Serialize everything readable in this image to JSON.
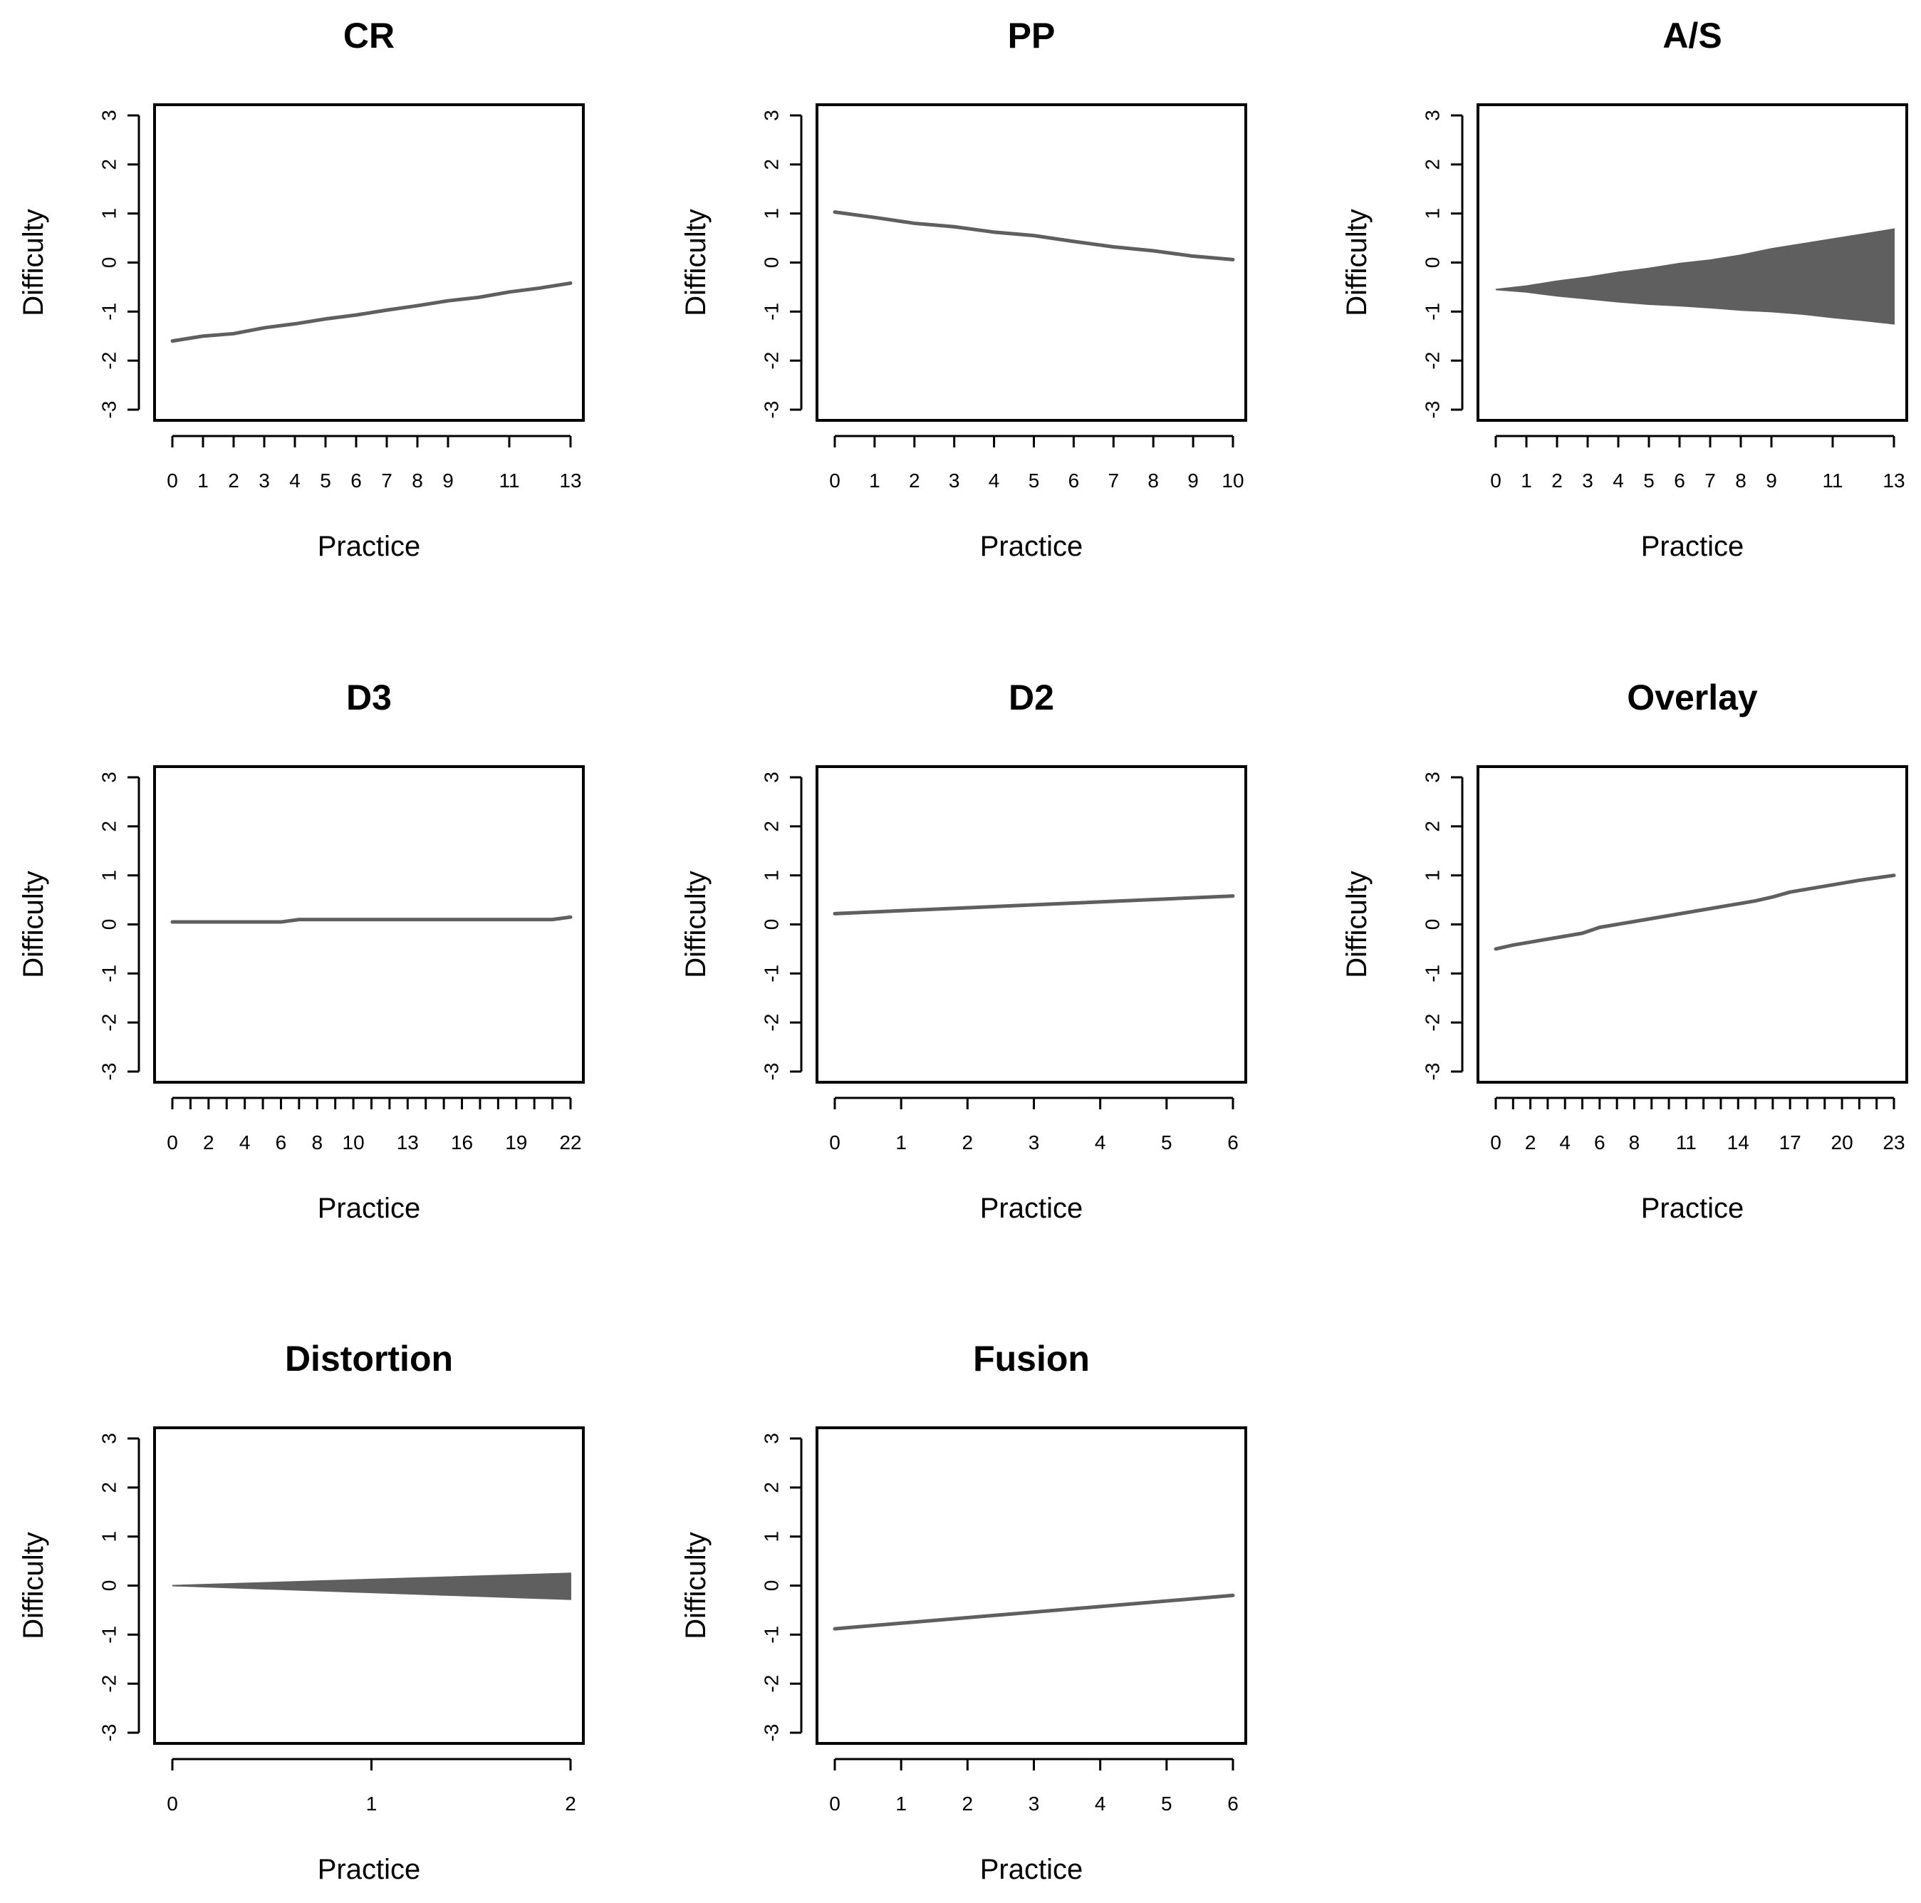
{
  "chart_data": [
    {
      "type": "line",
      "title": "CR",
      "xlabel": "Practice",
      "ylabel": "Difficulty",
      "x_tick_labels": [
        "0",
        "1",
        "2",
        "3",
        "4",
        "5",
        "6",
        "7",
        "8",
        "9",
        "11",
        "13"
      ],
      "x_tick_values": [
        0,
        1,
        2,
        3,
        4,
        5,
        6,
        7,
        8,
        9,
        11,
        13
      ],
      "xlim": [
        0,
        13
      ],
      "ylim": [
        -3,
        3
      ],
      "y_tick_labels": [
        "-3",
        "-2",
        "-1",
        "0",
        "1",
        "2",
        "3"
      ],
      "series": [
        {
          "name": "CR",
          "x": [
            0,
            1,
            2,
            3,
            4,
            5,
            6,
            7,
            8,
            9,
            10,
            11,
            12,
            13
          ],
          "values": [
            -1.6,
            -1.5,
            -1.45,
            -1.33,
            -1.25,
            -1.15,
            -1.07,
            -0.97,
            -0.88,
            -0.78,
            -0.71,
            -0.6,
            -0.52,
            -0.42
          ]
        }
      ]
    },
    {
      "type": "line",
      "title": "PP",
      "xlabel": "Practice",
      "ylabel": "Difficulty",
      "x_tick_labels": [
        "0",
        "1",
        "2",
        "3",
        "4",
        "5",
        "6",
        "7",
        "8",
        "9",
        "10"
      ],
      "x_tick_values": [
        0,
        1,
        2,
        3,
        4,
        5,
        6,
        7,
        8,
        9,
        10
      ],
      "xlim": [
        0,
        10
      ],
      "ylim": [
        -3,
        3
      ],
      "y_tick_labels": [
        "-3",
        "-2",
        "-1",
        "0",
        "1",
        "2",
        "3"
      ],
      "series": [
        {
          "name": "PP",
          "x": [
            0,
            1,
            2,
            3,
            4,
            5,
            6,
            7,
            8,
            9,
            10
          ],
          "values": [
            1.03,
            0.92,
            0.8,
            0.73,
            0.62,
            0.55,
            0.43,
            0.32,
            0.24,
            0.13,
            0.06
          ]
        }
      ]
    },
    {
      "type": "area",
      "title": "A/S",
      "xlabel": "Practice",
      "ylabel": "Difficulty",
      "x_tick_labels": [
        "0",
        "1",
        "2",
        "3",
        "4",
        "5",
        "6",
        "7",
        "8",
        "9",
        "11",
        "13"
      ],
      "x_tick_values": [
        0,
        1,
        2,
        3,
        4,
        5,
        6,
        7,
        8,
        9,
        11,
        13
      ],
      "xlim": [
        0,
        13
      ],
      "ylim": [
        -3,
        3
      ],
      "y_tick_labels": [
        "-3",
        "-2",
        "-1",
        "0",
        "1",
        "2",
        "3"
      ],
      "band": {
        "x": [
          0,
          1,
          2,
          3,
          4,
          5,
          6,
          7,
          8,
          9,
          10,
          11,
          12,
          13
        ],
        "upper": [
          -0.55,
          -0.48,
          -0.38,
          -0.3,
          -0.2,
          -0.12,
          -0.02,
          0.05,
          0.15,
          0.28,
          0.38,
          0.48,
          0.58,
          0.68
        ],
        "lower": [
          -0.55,
          -0.6,
          -0.68,
          -0.74,
          -0.8,
          -0.85,
          -0.88,
          -0.92,
          -0.97,
          -1.0,
          -1.05,
          -1.12,
          -1.18,
          -1.25
        ]
      }
    },
    {
      "type": "line",
      "title": "D3",
      "xlabel": "Practice",
      "ylabel": "Difficulty",
      "x_tick_labels": [
        "0",
        "2",
        "4",
        "6",
        "8",
        "10",
        "13",
        "16",
        "19",
        "22"
      ],
      "x_tick_values": [
        0,
        2,
        4,
        6,
        8,
        10,
        13,
        16,
        19,
        22
      ],
      "x_minor_ticks": [
        1,
        3,
        5,
        7,
        9,
        11,
        12,
        14,
        15,
        17,
        18,
        20,
        21
      ],
      "xlim": [
        0,
        22
      ],
      "ylim": [
        -3,
        3
      ],
      "y_tick_labels": [
        "-3",
        "-2",
        "-1",
        "0",
        "1",
        "2",
        "3"
      ],
      "series": [
        {
          "name": "D3",
          "x": [
            0,
            6,
            7,
            21,
            22
          ],
          "values": [
            0.05,
            0.05,
            0.1,
            0.1,
            0.15
          ]
        }
      ]
    },
    {
      "type": "line",
      "title": "D2",
      "xlabel": "Practice",
      "ylabel": "Difficulty",
      "x_tick_labels": [
        "0",
        "1",
        "2",
        "3",
        "4",
        "5",
        "6"
      ],
      "x_tick_values": [
        0,
        1,
        2,
        3,
        4,
        5,
        6
      ],
      "xlim": [
        0,
        6
      ],
      "ylim": [
        -3,
        3
      ],
      "y_tick_labels": [
        "-3",
        "-2",
        "-1",
        "0",
        "1",
        "2",
        "3"
      ],
      "series": [
        {
          "name": "D2",
          "x": [
            0,
            6
          ],
          "values": [
            0.22,
            0.58
          ]
        }
      ]
    },
    {
      "type": "line",
      "title": "Overlay",
      "xlabel": "Practice",
      "ylabel": "Difficulty",
      "x_tick_labels": [
        "0",
        "2",
        "4",
        "6",
        "8",
        "11",
        "14",
        "17",
        "20",
        "23"
      ],
      "x_tick_values": [
        0,
        2,
        4,
        6,
        8,
        11,
        14,
        17,
        20,
        23
      ],
      "x_minor_ticks": [
        1,
        3,
        5,
        7,
        9,
        10,
        12,
        13,
        15,
        16,
        18,
        19,
        21,
        22
      ],
      "xlim": [
        0,
        23
      ],
      "ylim": [
        -3,
        3
      ],
      "y_tick_labels": [
        "-3",
        "-2",
        "-1",
        "0",
        "1",
        "2",
        "3"
      ],
      "series": [
        {
          "name": "Overlay",
          "x": [
            0,
            1,
            2,
            3,
            4,
            5,
            6,
            7,
            8,
            9,
            10,
            11,
            12,
            13,
            14,
            15,
            16,
            17,
            18,
            19,
            20,
            21,
            22,
            23
          ],
          "values": [
            -0.5,
            -0.42,
            -0.36,
            -0.3,
            -0.24,
            -0.18,
            -0.06,
            0.0,
            0.06,
            0.12,
            0.18,
            0.24,
            0.3,
            0.36,
            0.42,
            0.48,
            0.56,
            0.66,
            0.72,
            0.78,
            0.84,
            0.9,
            0.95,
            1.0
          ]
        }
      ]
    },
    {
      "type": "area",
      "title": "Distortion",
      "xlabel": "Practice",
      "ylabel": "Difficulty",
      "x_tick_labels": [
        "0",
        "1",
        "2"
      ],
      "x_tick_values": [
        0,
        1,
        2
      ],
      "xlim": [
        0,
        2
      ],
      "ylim": [
        -3,
        3
      ],
      "y_tick_labels": [
        "-3",
        "-2",
        "-1",
        "0",
        "1",
        "2",
        "3"
      ],
      "band": {
        "x": [
          0,
          2
        ],
        "upper": [
          0.0,
          0.25
        ],
        "lower": [
          0.0,
          -0.28
        ]
      }
    },
    {
      "type": "line",
      "title": "Fusion",
      "xlabel": "Practice",
      "ylabel": "Difficulty",
      "x_tick_labels": [
        "0",
        "1",
        "2",
        "3",
        "4",
        "5",
        "6"
      ],
      "x_tick_values": [
        0,
        1,
        2,
        3,
        4,
        5,
        6
      ],
      "xlim": [
        0,
        6
      ],
      "ylim": [
        -3,
        3
      ],
      "y_tick_labels": [
        "-3",
        "-2",
        "-1",
        "0",
        "1",
        "2",
        "3"
      ],
      "series": [
        {
          "name": "Fusion",
          "x": [
            0,
            6
          ],
          "values": [
            -0.88,
            -0.2
          ]
        }
      ]
    }
  ]
}
